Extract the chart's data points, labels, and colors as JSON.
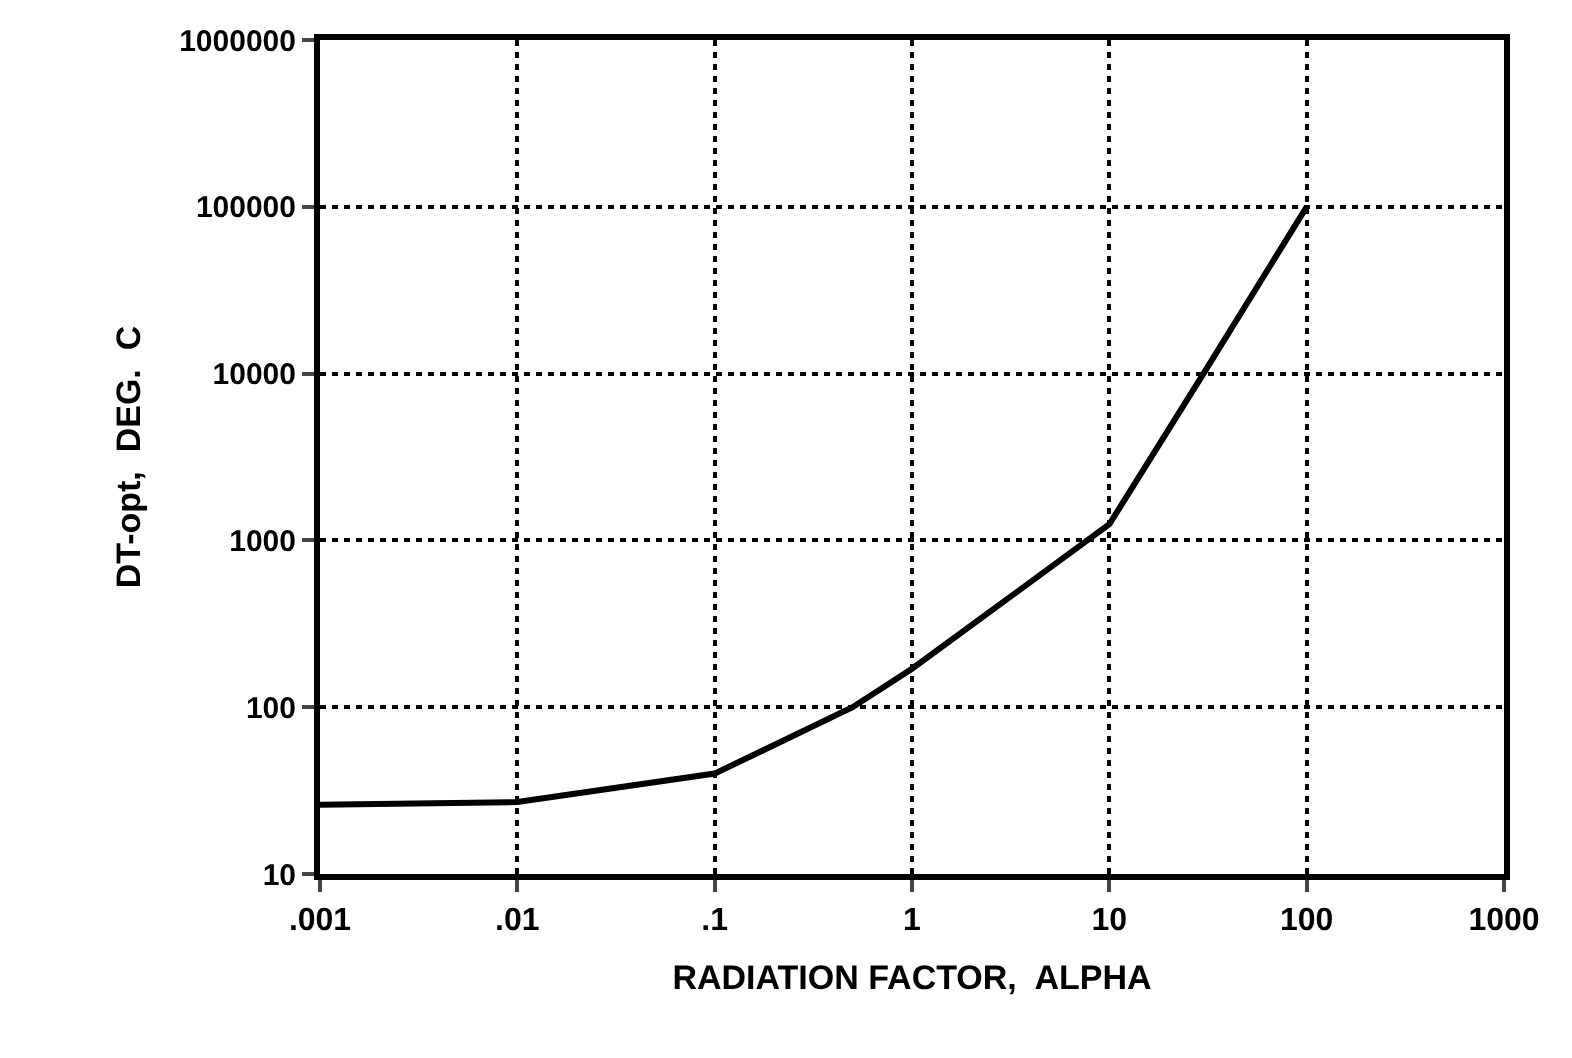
{
  "chart_data": {
    "type": "line",
    "xlabel": "RADIATION FACTOR,  ALPHA",
    "ylabel": "DT-opt,  DEG.  C",
    "log": "xy",
    "grid": true,
    "marker": "none",
    "line_style": "solid",
    "x": [
      0.001,
      0.01,
      0.1,
      0.5,
      1,
      10,
      30,
      100
    ],
    "series": [
      {
        "color": "#000000",
        "values": [
          26,
          27,
          40,
          100,
          170,
          1250,
          10000,
          100000
        ]
      }
    ],
    "xlim": [
      0.001,
      1000
    ],
    "ylim": [
      10,
      1000000
    ],
    "xticks": [
      {
        "value": 0.001,
        "label": ".001"
      },
      {
        "value": 0.01,
        "label": ".01"
      },
      {
        "value": 0.1,
        "label": ".1"
      },
      1,
      10,
      100,
      1000
    ],
    "yticks": [
      10,
      100,
      1000,
      10000,
      100000,
      1000000
    ]
  }
}
